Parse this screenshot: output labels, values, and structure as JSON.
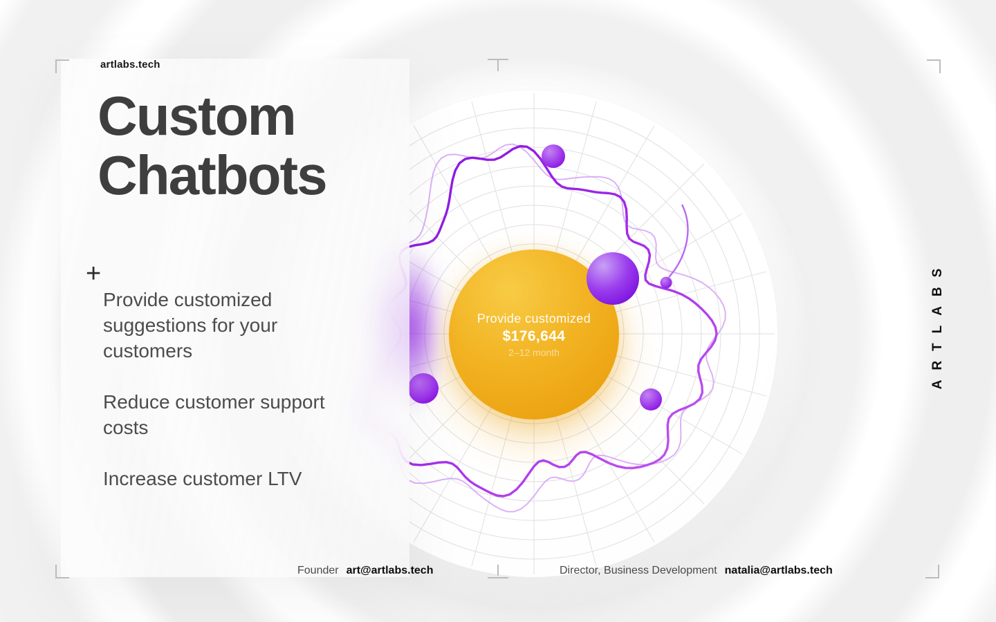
{
  "brand": {
    "logo": "artlabs.tech",
    "wordmark": "ARTLABS"
  },
  "panel": {
    "title_line1": "Custom",
    "title_line2": "Chatbots",
    "plus": "+",
    "bullets": [
      "Provide customized suggestions for your customers",
      "Reduce customer support costs",
      "Increase customer LTV"
    ]
  },
  "bubble": {
    "label": "Provide customized",
    "value": "$176,644",
    "period": "2–12 month"
  },
  "footer": {
    "left_role": "Founder",
    "left_email": "art@artlabs.tech",
    "right_role": "Director, Business Development",
    "right_email": "natalia@artlabs.tech"
  },
  "colors": {
    "accent_purple": "#9b23e0",
    "accent_purple_light": "#d8a8f5",
    "accent_orange": "#f0ab16",
    "heading_gray": "#3e3e3e",
    "grid_gray": "#dcdcdc",
    "mark_gray": "#bcbcbc"
  }
}
